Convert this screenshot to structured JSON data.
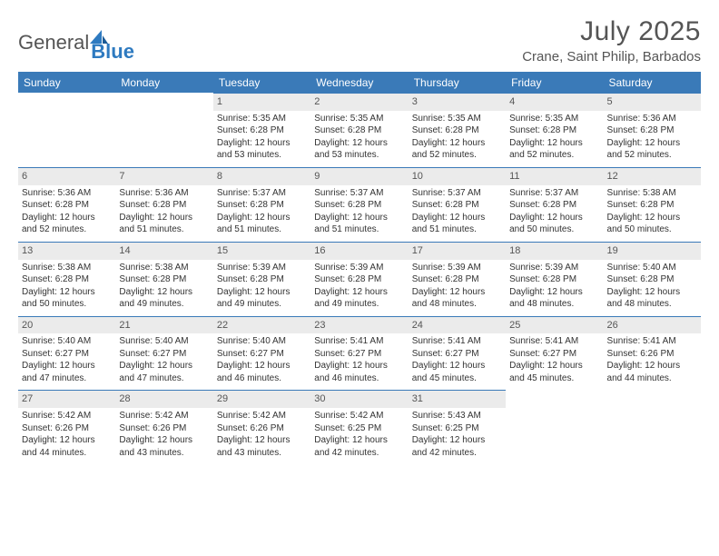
{
  "brand": {
    "name_part1": "General",
    "name_part2": "Blue"
  },
  "colors": {
    "header_bg": "#3a7ab8",
    "header_text": "#ffffff",
    "daynum_bg": "#ebebeb",
    "text": "#333333",
    "title_text": "#555555",
    "divider": "#3a7ab8",
    "page_bg": "#ffffff",
    "brand_blue": "#2e7ac0"
  },
  "title": "July 2025",
  "location": "Crane, Saint Philip, Barbados",
  "weekdays": [
    "Sunday",
    "Monday",
    "Tuesday",
    "Wednesday",
    "Thursday",
    "Friday",
    "Saturday"
  ],
  "typography": {
    "title_fontsize": 30,
    "location_fontsize": 15,
    "weekday_fontsize": 12,
    "daynum_fontsize": 11,
    "body_fontsize": 10
  },
  "layout": {
    "columns": 7,
    "rows": 5,
    "first_weekday_index": 2,
    "days_in_month": 31
  },
  "weeks": [
    [
      null,
      null,
      {
        "n": "1",
        "sunrise": "Sunrise: 5:35 AM",
        "sunset": "Sunset: 6:28 PM",
        "daylight": "Daylight: 12 hours and 53 minutes."
      },
      {
        "n": "2",
        "sunrise": "Sunrise: 5:35 AM",
        "sunset": "Sunset: 6:28 PM",
        "daylight": "Daylight: 12 hours and 53 minutes."
      },
      {
        "n": "3",
        "sunrise": "Sunrise: 5:35 AM",
        "sunset": "Sunset: 6:28 PM",
        "daylight": "Daylight: 12 hours and 52 minutes."
      },
      {
        "n": "4",
        "sunrise": "Sunrise: 5:35 AM",
        "sunset": "Sunset: 6:28 PM",
        "daylight": "Daylight: 12 hours and 52 minutes."
      },
      {
        "n": "5",
        "sunrise": "Sunrise: 5:36 AM",
        "sunset": "Sunset: 6:28 PM",
        "daylight": "Daylight: 12 hours and 52 minutes."
      }
    ],
    [
      {
        "n": "6",
        "sunrise": "Sunrise: 5:36 AM",
        "sunset": "Sunset: 6:28 PM",
        "daylight": "Daylight: 12 hours and 52 minutes."
      },
      {
        "n": "7",
        "sunrise": "Sunrise: 5:36 AM",
        "sunset": "Sunset: 6:28 PM",
        "daylight": "Daylight: 12 hours and 51 minutes."
      },
      {
        "n": "8",
        "sunrise": "Sunrise: 5:37 AM",
        "sunset": "Sunset: 6:28 PM",
        "daylight": "Daylight: 12 hours and 51 minutes."
      },
      {
        "n": "9",
        "sunrise": "Sunrise: 5:37 AM",
        "sunset": "Sunset: 6:28 PM",
        "daylight": "Daylight: 12 hours and 51 minutes."
      },
      {
        "n": "10",
        "sunrise": "Sunrise: 5:37 AM",
        "sunset": "Sunset: 6:28 PM",
        "daylight": "Daylight: 12 hours and 51 minutes."
      },
      {
        "n": "11",
        "sunrise": "Sunrise: 5:37 AM",
        "sunset": "Sunset: 6:28 PM",
        "daylight": "Daylight: 12 hours and 50 minutes."
      },
      {
        "n": "12",
        "sunrise": "Sunrise: 5:38 AM",
        "sunset": "Sunset: 6:28 PM",
        "daylight": "Daylight: 12 hours and 50 minutes."
      }
    ],
    [
      {
        "n": "13",
        "sunrise": "Sunrise: 5:38 AM",
        "sunset": "Sunset: 6:28 PM",
        "daylight": "Daylight: 12 hours and 50 minutes."
      },
      {
        "n": "14",
        "sunrise": "Sunrise: 5:38 AM",
        "sunset": "Sunset: 6:28 PM",
        "daylight": "Daylight: 12 hours and 49 minutes."
      },
      {
        "n": "15",
        "sunrise": "Sunrise: 5:39 AM",
        "sunset": "Sunset: 6:28 PM",
        "daylight": "Daylight: 12 hours and 49 minutes."
      },
      {
        "n": "16",
        "sunrise": "Sunrise: 5:39 AM",
        "sunset": "Sunset: 6:28 PM",
        "daylight": "Daylight: 12 hours and 49 minutes."
      },
      {
        "n": "17",
        "sunrise": "Sunrise: 5:39 AM",
        "sunset": "Sunset: 6:28 PM",
        "daylight": "Daylight: 12 hours and 48 minutes."
      },
      {
        "n": "18",
        "sunrise": "Sunrise: 5:39 AM",
        "sunset": "Sunset: 6:28 PM",
        "daylight": "Daylight: 12 hours and 48 minutes."
      },
      {
        "n": "19",
        "sunrise": "Sunrise: 5:40 AM",
        "sunset": "Sunset: 6:28 PM",
        "daylight": "Daylight: 12 hours and 48 minutes."
      }
    ],
    [
      {
        "n": "20",
        "sunrise": "Sunrise: 5:40 AM",
        "sunset": "Sunset: 6:27 PM",
        "daylight": "Daylight: 12 hours and 47 minutes."
      },
      {
        "n": "21",
        "sunrise": "Sunrise: 5:40 AM",
        "sunset": "Sunset: 6:27 PM",
        "daylight": "Daylight: 12 hours and 47 minutes."
      },
      {
        "n": "22",
        "sunrise": "Sunrise: 5:40 AM",
        "sunset": "Sunset: 6:27 PM",
        "daylight": "Daylight: 12 hours and 46 minutes."
      },
      {
        "n": "23",
        "sunrise": "Sunrise: 5:41 AM",
        "sunset": "Sunset: 6:27 PM",
        "daylight": "Daylight: 12 hours and 46 minutes."
      },
      {
        "n": "24",
        "sunrise": "Sunrise: 5:41 AM",
        "sunset": "Sunset: 6:27 PM",
        "daylight": "Daylight: 12 hours and 45 minutes."
      },
      {
        "n": "25",
        "sunrise": "Sunrise: 5:41 AM",
        "sunset": "Sunset: 6:27 PM",
        "daylight": "Daylight: 12 hours and 45 minutes."
      },
      {
        "n": "26",
        "sunrise": "Sunrise: 5:41 AM",
        "sunset": "Sunset: 6:26 PM",
        "daylight": "Daylight: 12 hours and 44 minutes."
      }
    ],
    [
      {
        "n": "27",
        "sunrise": "Sunrise: 5:42 AM",
        "sunset": "Sunset: 6:26 PM",
        "daylight": "Daylight: 12 hours and 44 minutes."
      },
      {
        "n": "28",
        "sunrise": "Sunrise: 5:42 AM",
        "sunset": "Sunset: 6:26 PM",
        "daylight": "Daylight: 12 hours and 43 minutes."
      },
      {
        "n": "29",
        "sunrise": "Sunrise: 5:42 AM",
        "sunset": "Sunset: 6:26 PM",
        "daylight": "Daylight: 12 hours and 43 minutes."
      },
      {
        "n": "30",
        "sunrise": "Sunrise: 5:42 AM",
        "sunset": "Sunset: 6:25 PM",
        "daylight": "Daylight: 12 hours and 42 minutes."
      },
      {
        "n": "31",
        "sunrise": "Sunrise: 5:43 AM",
        "sunset": "Sunset: 6:25 PM",
        "daylight": "Daylight: 12 hours and 42 minutes."
      },
      null,
      null
    ]
  ]
}
